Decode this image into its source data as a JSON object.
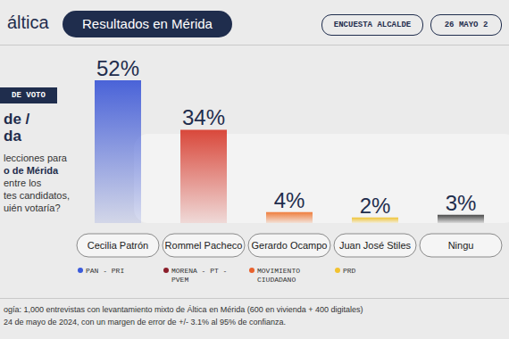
{
  "header": {
    "logo": "áltica",
    "title": "Resultados en Mérida",
    "survey": "ENCUESTA ALCALDE",
    "date": "26 MAYO 2"
  },
  "panel": {
    "tag": "DE VOTO",
    "heading": [
      "de /",
      "da"
    ],
    "question": [
      "lecciones para",
      "o de Mérida",
      "entre los",
      "tes candidatos,",
      "uién votaría?"
    ]
  },
  "chart_data": {
    "type": "bar",
    "categories": [
      "Cecilia Patrón",
      "Rommel Pacheco",
      "Gerardo Ocampo",
      "Juan José Stiles",
      "Ningu"
    ],
    "values": [
      52,
      34,
      4,
      2,
      3
    ],
    "value_labels": [
      "52%",
      "34%",
      "4%",
      "2%",
      "3%"
    ],
    "colors": [
      "#4a63d8",
      "#d9483b",
      "#ef7d3c",
      "#f0c53a",
      "#4a4a4a"
    ],
    "data_labels": true,
    "tick_labels": "x",
    "grid": false
  },
  "parties": [
    {
      "label": "PAN - PRI",
      "color": "#3b5bdb"
    },
    {
      "label": "MORENA - PT - PVEM",
      "color": "#8b1e2a"
    },
    {
      "label": "MOVIMIENTO CIUDADANO",
      "color": "#e8612c"
    },
    {
      "label": "PRD",
      "color": "#f2c230"
    }
  ],
  "footer": [
    "ogía: 1,000 entrevistas con levantamiento mixto de Áltica en Mérida (600 en vivienda + 400 digitales)",
    "24 de mayo de 2024, con un margen de error de +/- 3.1% al 95% de confianza."
  ]
}
